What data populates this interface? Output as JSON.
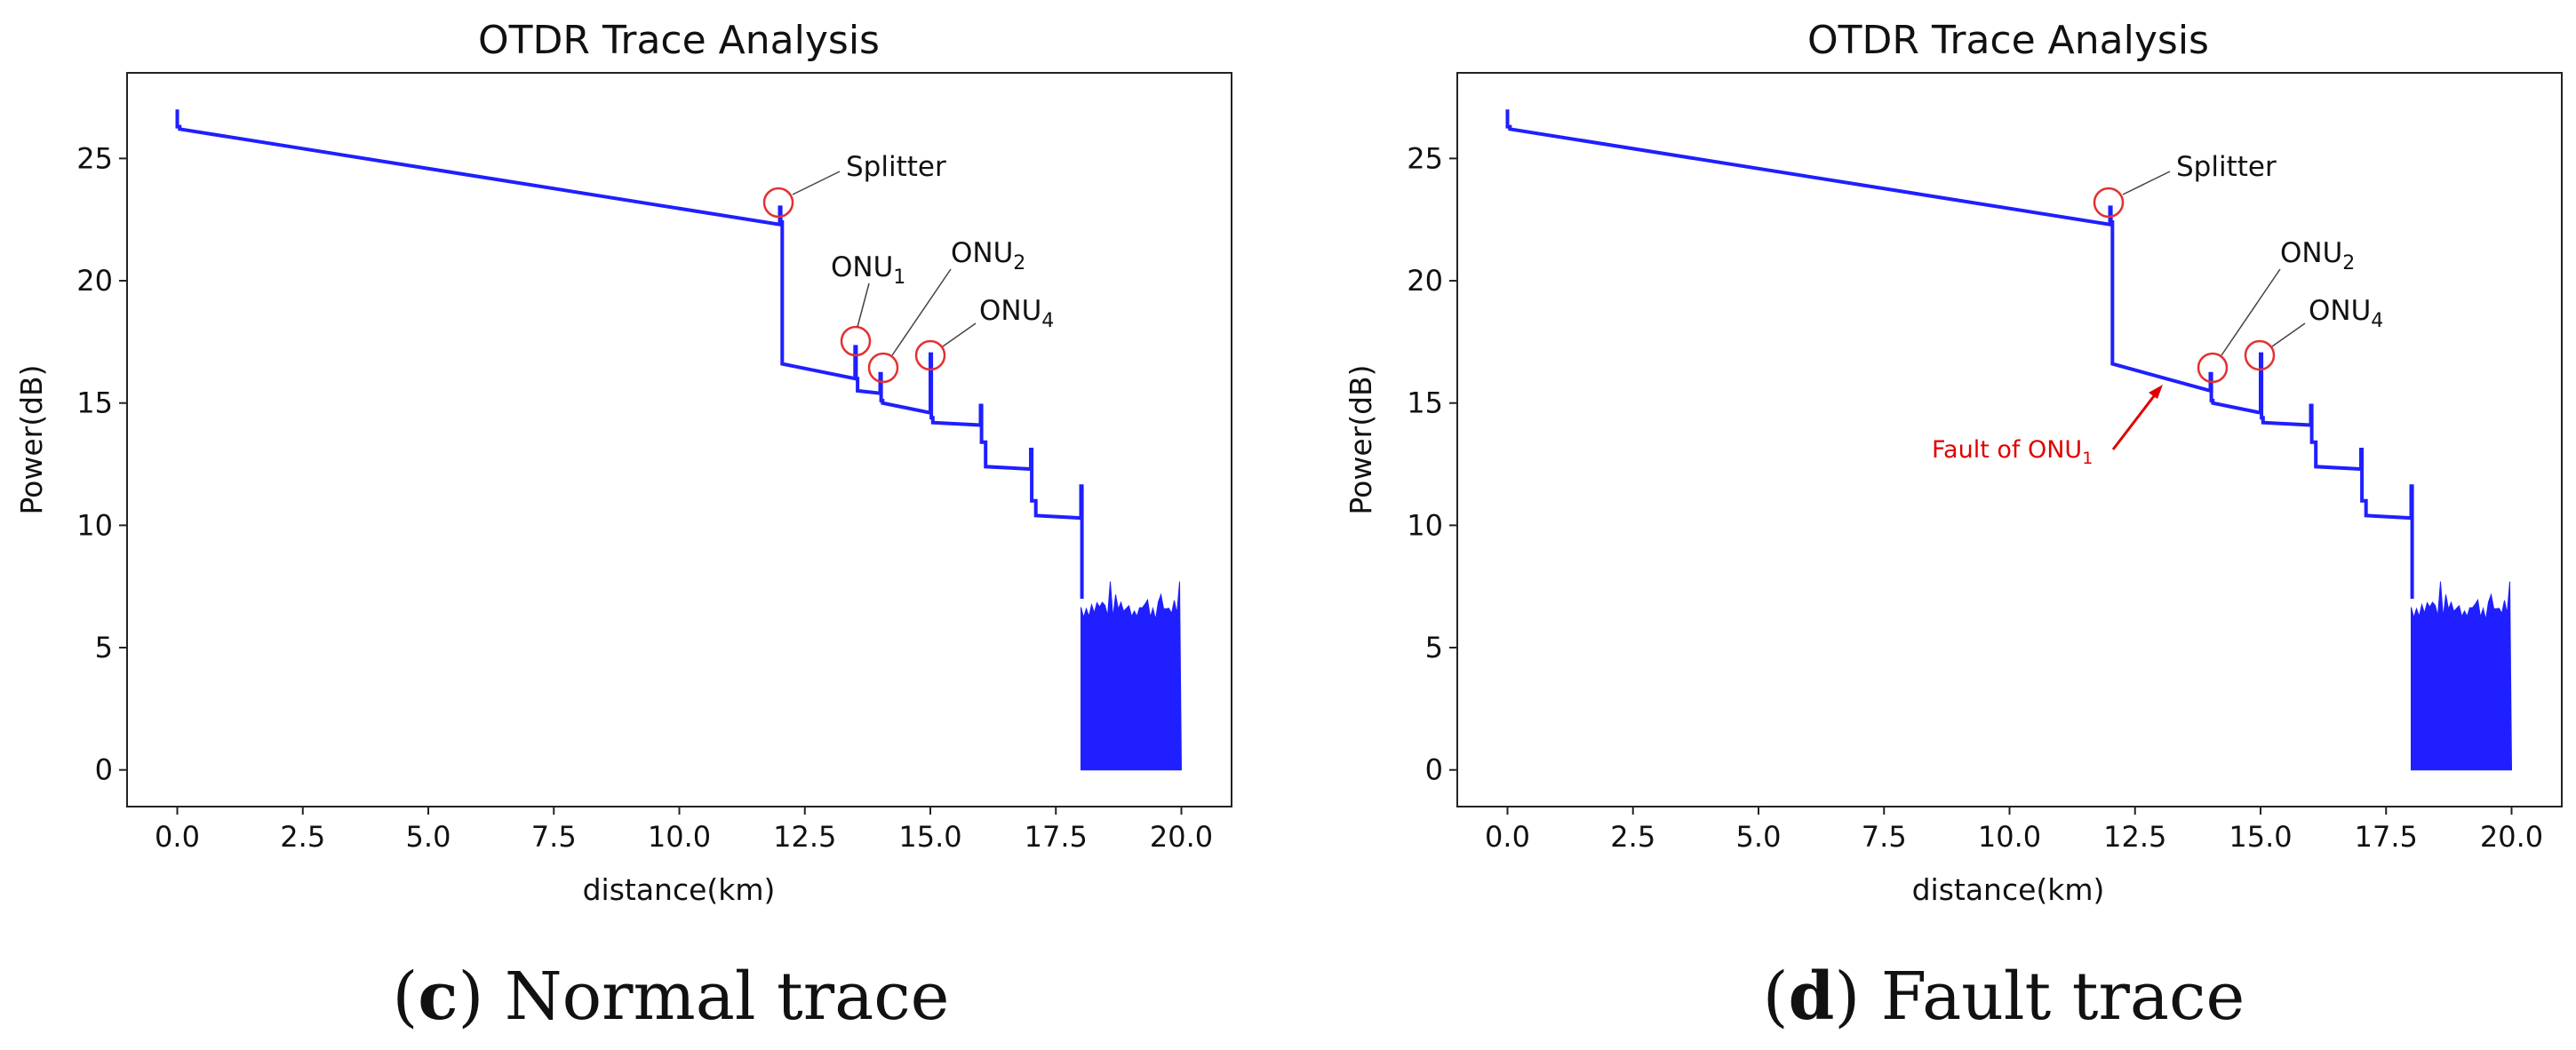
{
  "figure": {
    "captions": [
      {
        "letter": "c",
        "text": "Normal trace"
      },
      {
        "letter": "d",
        "text": "Fault trace"
      }
    ]
  },
  "chart_data": [
    {
      "type": "line",
      "title": "OTDR Trace Analysis",
      "xlabel": "distance(km)",
      "ylabel": "Power(dB)",
      "xlim": [
        -1.0,
        21.0
      ],
      "ylim": [
        -1.5,
        28.5
      ],
      "xticks": [
        0.0,
        2.5,
        5.0,
        7.5,
        10.0,
        12.5,
        15.0,
        17.5,
        20.0
      ],
      "xtick_labels": [
        "0.0",
        "2.5",
        "5.0",
        "7.5",
        "10.0",
        "12.5",
        "15.0",
        "17.5",
        "20.0"
      ],
      "yticks": [
        0,
        5,
        10,
        15,
        20,
        25
      ],
      "ytick_labels": [
        "0",
        "5",
        "10",
        "15",
        "20",
        "25"
      ],
      "grid": false,
      "series": [
        {
          "name": "OTDR trace",
          "color": "#1f1fff",
          "x": [
            0.0,
            0.0,
            0.05,
            0.05,
            12.0,
            12.0,
            12.02,
            12.02,
            12.05,
            12.05,
            13.5,
            13.5,
            13.52,
            13.52,
            13.55,
            13.55,
            14.0,
            14.0,
            14.02,
            14.02,
            14.05,
            14.05,
            15.0,
            15.0,
            15.02,
            15.02,
            15.05,
            15.05,
            16.0,
            16.0,
            16.02,
            16.02,
            16.1,
            16.1,
            17.0,
            17.0,
            17.02,
            17.02,
            17.1,
            17.1,
            18.0,
            18.0,
            18.02,
            18.02
          ],
          "y": [
            27.0,
            26.3,
            26.3,
            26.2,
            22.3,
            23.0,
            23.0,
            22.4,
            22.4,
            16.6,
            16.0,
            17.3,
            17.3,
            16.0,
            16.0,
            15.5,
            15.4,
            16.2,
            16.2,
            15.1,
            15.1,
            15.0,
            14.6,
            17.0,
            17.0,
            14.4,
            14.4,
            14.2,
            14.1,
            14.9,
            14.9,
            13.4,
            13.4,
            12.4,
            12.3,
            13.1,
            13.1,
            11.0,
            11.0,
            10.4,
            10.3,
            11.6,
            11.6,
            7.0
          ]
        },
        {
          "name": "noise floor",
          "color": "#1f1fff",
          "x_range": [
            18.0,
            20.0
          ],
          "y_range": [
            0.0,
            7.0
          ]
        }
      ],
      "annotations": [
        {
          "text": "Splitter",
          "marker_at": [
            12.0,
            23.1
          ]
        },
        {
          "text": "ONU",
          "sub": "1",
          "marker_at": [
            13.5,
            17.5
          ]
        },
        {
          "text": "ONU",
          "sub": "2",
          "marker_at": [
            14.0,
            16.5
          ]
        },
        {
          "text": "ONU",
          "sub": "4",
          "marker_at": [
            15.0,
            17.0
          ]
        }
      ]
    },
    {
      "type": "line",
      "title": "OTDR Trace Analysis",
      "xlabel": "distance(km)",
      "ylabel": "Power(dB)",
      "xlim": [
        -1.0,
        21.0
      ],
      "ylim": [
        -1.5,
        28.5
      ],
      "xticks": [
        0.0,
        2.5,
        5.0,
        7.5,
        10.0,
        12.5,
        15.0,
        17.5,
        20.0
      ],
      "xtick_labels": [
        "0.0",
        "2.5",
        "5.0",
        "7.5",
        "10.0",
        "12.5",
        "15.0",
        "17.5",
        "20.0"
      ],
      "yticks": [
        0,
        5,
        10,
        15,
        20,
        25
      ],
      "ytick_labels": [
        "0",
        "5",
        "10",
        "15",
        "20",
        "25"
      ],
      "grid": false,
      "series": [
        {
          "name": "OTDR trace",
          "color": "#1f1fff",
          "x": [
            0.0,
            0.0,
            0.05,
            0.05,
            12.0,
            12.0,
            12.02,
            12.02,
            12.05,
            12.05,
            14.0,
            14.0,
            14.02,
            14.02,
            14.05,
            14.05,
            15.0,
            15.0,
            15.02,
            15.02,
            15.05,
            15.05,
            16.0,
            16.0,
            16.02,
            16.02,
            16.1,
            16.1,
            17.0,
            17.0,
            17.02,
            17.02,
            17.1,
            17.1,
            18.0,
            18.0,
            18.02,
            18.02
          ],
          "y": [
            27.0,
            26.3,
            26.3,
            26.2,
            22.3,
            23.0,
            23.0,
            22.4,
            22.4,
            16.6,
            15.5,
            16.2,
            16.2,
            15.1,
            15.1,
            15.0,
            14.6,
            17.0,
            17.0,
            14.4,
            14.4,
            14.2,
            14.1,
            14.9,
            14.9,
            13.4,
            13.4,
            12.4,
            12.3,
            13.1,
            13.1,
            11.0,
            11.0,
            10.4,
            10.3,
            11.6,
            11.6,
            7.0
          ]
        },
        {
          "name": "noise floor",
          "color": "#1f1fff",
          "x_range": [
            18.0,
            20.0
          ],
          "y_range": [
            0.0,
            7.0
          ]
        }
      ],
      "annotations": [
        {
          "text": "Splitter",
          "marker_at": [
            12.0,
            23.1
          ]
        },
        {
          "text": "ONU",
          "sub": "2",
          "marker_at": [
            14.0,
            16.5
          ]
        },
        {
          "text": "ONU",
          "sub": "4",
          "marker_at": [
            15.0,
            17.0
          ]
        },
        {
          "text": "Fault of ONU",
          "sub": "1",
          "color": "#e00000",
          "points_to": [
            13.3,
            16.0
          ]
        }
      ]
    }
  ]
}
